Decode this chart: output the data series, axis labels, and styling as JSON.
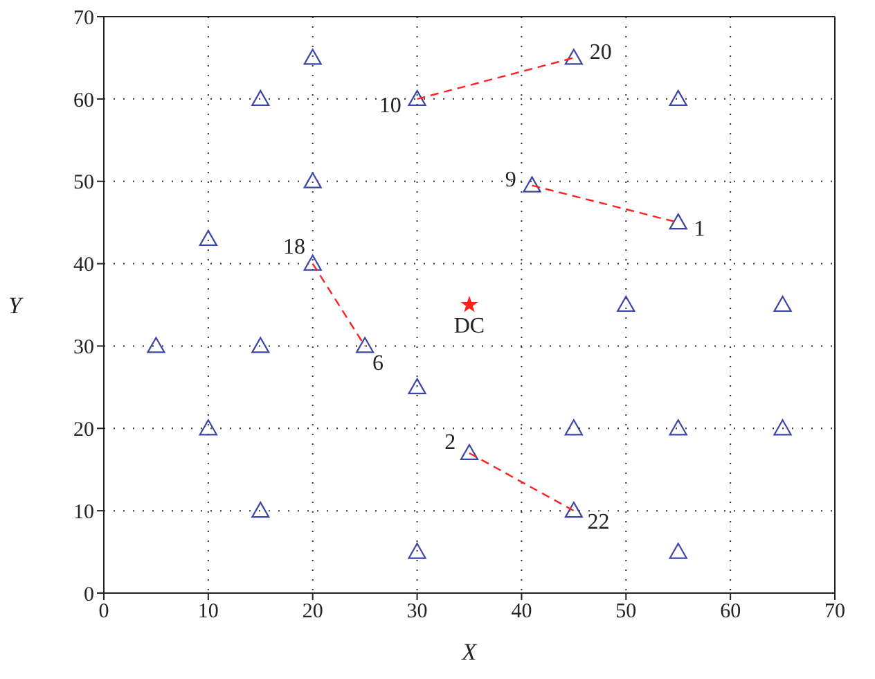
{
  "chart_data": {
    "type": "scatter",
    "xlabel": "X",
    "ylabel": "Y",
    "xlim": [
      0,
      70
    ],
    "ylim": [
      0,
      70
    ],
    "xticks": [
      0,
      10,
      20,
      30,
      40,
      50,
      60,
      70
    ],
    "yticks": [
      0,
      10,
      20,
      30,
      40,
      50,
      60,
      70
    ],
    "grid": true,
    "series": [
      {
        "marker": "triangle",
        "color": "#3a45a8",
        "x": [
          20,
          15,
          30,
          45,
          55,
          20,
          41,
          55,
          10,
          20,
          5,
          15,
          25,
          30,
          50,
          65,
          10,
          45,
          55,
          65,
          35,
          15,
          45,
          30,
          55
        ],
        "values": [
          65,
          60,
          60,
          65,
          60,
          50,
          49.5,
          45,
          43,
          40,
          30,
          30,
          30,
          25,
          35,
          35,
          20,
          20,
          20,
          20,
          17,
          10,
          10,
          5,
          5
        ]
      },
      {
        "marker": "star",
        "color": "#ff2020",
        "x": [
          35
        ],
        "values": [
          35
        ]
      },
      {
        "type": "line",
        "marker": "none",
        "line_style": "dashed",
        "color": "#ff2020",
        "x": [
          30,
          45
        ],
        "values": [
          60,
          65
        ]
      },
      {
        "type": "line",
        "marker": "none",
        "line_style": "dashed",
        "color": "#ff2020",
        "x": [
          41,
          55
        ],
        "values": [
          49.5,
          45
        ]
      },
      {
        "type": "line",
        "marker": "none",
        "line_style": "dashed",
        "color": "#ff2020",
        "x": [
          20,
          25
        ],
        "values": [
          40,
          30
        ]
      },
      {
        "type": "line",
        "marker": "none",
        "line_style": "dashed",
        "color": "#ff2020",
        "x": [
          35,
          45
        ],
        "values": [
          17,
          10
        ]
      }
    ],
    "annotations": [
      {
        "text": "20",
        "x": 45,
        "y": 65
      },
      {
        "text": "10",
        "x": 30,
        "y": 60
      },
      {
        "text": "9",
        "x": 41,
        "y": 49.5
      },
      {
        "text": "1",
        "x": 55,
        "y": 45
      },
      {
        "text": "18",
        "x": 20,
        "y": 40
      },
      {
        "text": "6",
        "x": 25,
        "y": 30
      },
      {
        "text": "2",
        "x": 35,
        "y": 17
      },
      {
        "text": "22",
        "x": 45,
        "y": 10
      },
      {
        "text": "DC",
        "x": 35,
        "y": 35
      }
    ]
  }
}
